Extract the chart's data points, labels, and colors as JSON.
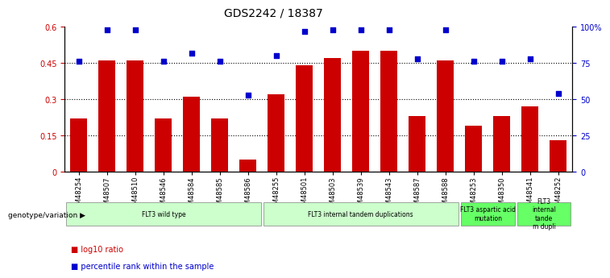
{
  "title": "GDS2242 / 18387",
  "samples": [
    "GSM48254",
    "GSM48507",
    "GSM48510",
    "GSM48546",
    "GSM48584",
    "GSM48585",
    "GSM48586",
    "GSM48255",
    "GSM48501",
    "GSM48503",
    "GSM48539",
    "GSM48543",
    "GSM48587",
    "GSM48588",
    "GSM48253",
    "GSM48350",
    "GSM48541",
    "GSM48252"
  ],
  "log10_ratio": [
    0.22,
    0.46,
    0.46,
    0.22,
    0.31,
    0.22,
    0.05,
    0.32,
    0.44,
    0.47,
    0.5,
    0.5,
    0.23,
    0.46,
    0.19,
    0.23,
    0.27,
    0.13
  ],
  "percentile_rank": [
    0.76,
    0.98,
    0.98,
    0.76,
    0.82,
    0.76,
    0.53,
    0.8,
    0.97,
    0.98,
    0.98,
    0.98,
    0.78,
    0.98,
    0.76,
    0.76,
    0.78,
    0.54
  ],
  "bar_color": "#cc0000",
  "dot_color": "#0000cc",
  "ylim_left": [
    0,
    0.6
  ],
  "ylim_right": [
    0,
    1.0
  ],
  "yticks_left": [
    0,
    0.15,
    0.3,
    0.45,
    0.6
  ],
  "ytick_labels_left": [
    "0",
    "0.15",
    "0.3",
    "0.45",
    "0.6"
  ],
  "yticks_right": [
    0,
    0.25,
    0.5,
    0.75,
    1.0
  ],
  "ytick_labels_right": [
    "0",
    "25",
    "50",
    "75",
    "100%"
  ],
  "hlines": [
    0.15,
    0.3,
    0.45
  ],
  "groups": [
    {
      "label": "FLT3 wild type",
      "start": 0,
      "end": 7,
      "color": "#ccffcc"
    },
    {
      "label": "FLT3 internal tandem duplications",
      "start": 7,
      "end": 14,
      "color": "#ccffcc"
    },
    {
      "label": "FLT3 aspartic acid\nmutation",
      "start": 14,
      "end": 16,
      "color": "#66ff66"
    },
    {
      "label": "FLT3\ninternal\ntande\nm dupli",
      "start": 16,
      "end": 18,
      "color": "#66ff66"
    }
  ],
  "genotype_label": "genotype/variation",
  "legend_bar_label": "log10 ratio",
  "legend_dot_label": "percentile rank within the sample",
  "bar_width": 0.6
}
